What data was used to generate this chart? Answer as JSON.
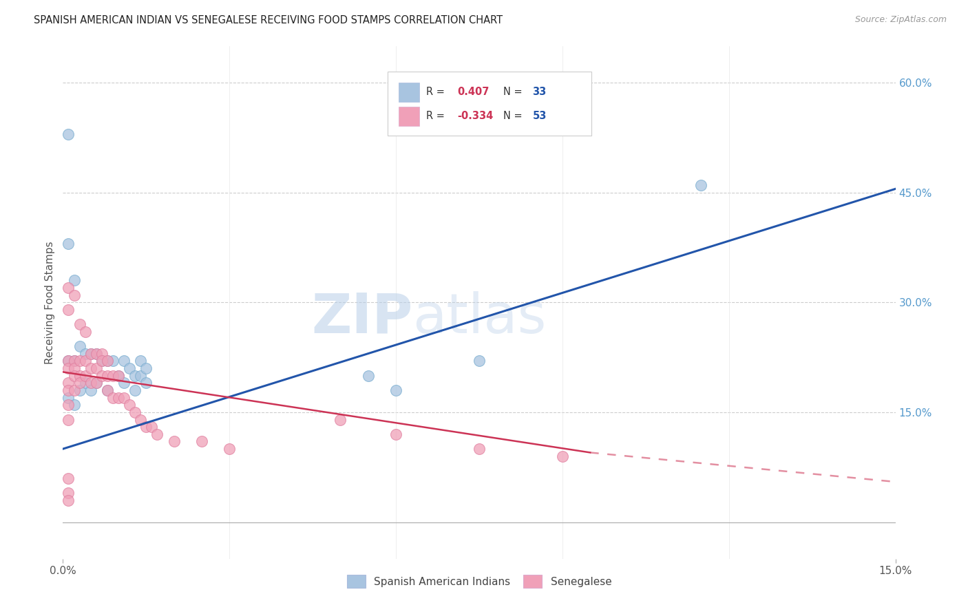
{
  "title": "SPANISH AMERICAN INDIAN VS SENEGALESE RECEIVING FOOD STAMPS CORRELATION CHART",
  "source": "Source: ZipAtlas.com",
  "ylabel": "Receiving Food Stamps",
  "xlim": [
    0.0,
    0.15
  ],
  "ylim": [
    -0.05,
    0.65
  ],
  "xtick_positions": [
    0.0,
    0.15
  ],
  "xtick_labels": [
    "0.0%",
    "15.0%"
  ],
  "yticks_right": [
    0.15,
    0.3,
    0.45,
    0.6
  ],
  "ytick_right_labels": [
    "15.0%",
    "30.0%",
    "45.0%",
    "60.0%"
  ],
  "grid_color": "#cccccc",
  "background_color": "#ffffff",
  "watermark": "ZIPatlas",
  "blue_scatter_x": [
    0.001,
    0.001,
    0.001,
    0.002,
    0.002,
    0.002,
    0.003,
    0.003,
    0.004,
    0.004,
    0.005,
    0.005,
    0.006,
    0.006,
    0.007,
    0.008,
    0.008,
    0.009,
    0.01,
    0.011,
    0.011,
    0.012,
    0.013,
    0.013,
    0.014,
    0.014,
    0.015,
    0.015,
    0.055,
    0.06,
    0.075,
    0.115,
    0.001
  ],
  "blue_scatter_y": [
    0.53,
    0.22,
    0.17,
    0.33,
    0.22,
    0.16,
    0.24,
    0.18,
    0.23,
    0.19,
    0.23,
    0.18,
    0.23,
    0.19,
    0.22,
    0.22,
    0.18,
    0.22,
    0.2,
    0.22,
    0.19,
    0.21,
    0.2,
    0.18,
    0.22,
    0.2,
    0.21,
    0.19,
    0.2,
    0.18,
    0.22,
    0.46,
    0.38
  ],
  "pink_scatter_x": [
    0.001,
    0.001,
    0.001,
    0.001,
    0.001,
    0.001,
    0.001,
    0.001,
    0.001,
    0.002,
    0.002,
    0.002,
    0.002,
    0.002,
    0.003,
    0.003,
    0.003,
    0.003,
    0.004,
    0.004,
    0.004,
    0.005,
    0.005,
    0.005,
    0.006,
    0.006,
    0.006,
    0.007,
    0.007,
    0.007,
    0.008,
    0.008,
    0.008,
    0.009,
    0.009,
    0.01,
    0.01,
    0.011,
    0.012,
    0.013,
    0.014,
    0.015,
    0.016,
    0.017,
    0.02,
    0.025,
    0.03,
    0.05,
    0.06,
    0.075,
    0.09,
    0.001,
    0.001
  ],
  "pink_scatter_y": [
    0.32,
    0.29,
    0.22,
    0.21,
    0.19,
    0.18,
    0.16,
    0.14,
    0.06,
    0.31,
    0.22,
    0.21,
    0.2,
    0.18,
    0.27,
    0.22,
    0.2,
    0.19,
    0.26,
    0.22,
    0.2,
    0.23,
    0.21,
    0.19,
    0.23,
    0.21,
    0.19,
    0.23,
    0.22,
    0.2,
    0.22,
    0.2,
    0.18,
    0.2,
    0.17,
    0.2,
    0.17,
    0.17,
    0.16,
    0.15,
    0.14,
    0.13,
    0.13,
    0.12,
    0.11,
    0.11,
    0.1,
    0.14,
    0.12,
    0.1,
    0.09,
    0.04,
    0.03
  ],
  "blue_color": "#a8c4e0",
  "blue_edge": "#7aaed0",
  "pink_color": "#f0a0b8",
  "pink_edge": "#e080a0",
  "blue_line_color": "#2255aa",
  "pink_line_color": "#cc3355",
  "blue_trend": [
    0.0,
    0.15,
    0.1,
    0.455
  ],
  "pink_trend_solid": [
    0.0,
    0.095,
    0.205,
    0.095
  ],
  "pink_trend_dashed": [
    0.095,
    0.15,
    0.095,
    0.055
  ],
  "legend_r1_text": "R = ",
  "legend_r1_val": "0.407",
  "legend_n1_text": "N = ",
  "legend_n1_val": "33",
  "legend_r2_text": "R = ",
  "legend_r2_val": "-0.334",
  "legend_n2_text": "N = ",
  "legend_n2_val": "53",
  "legend_label1": "Spanish American Indians",
  "legend_label2": "Senegalese"
}
